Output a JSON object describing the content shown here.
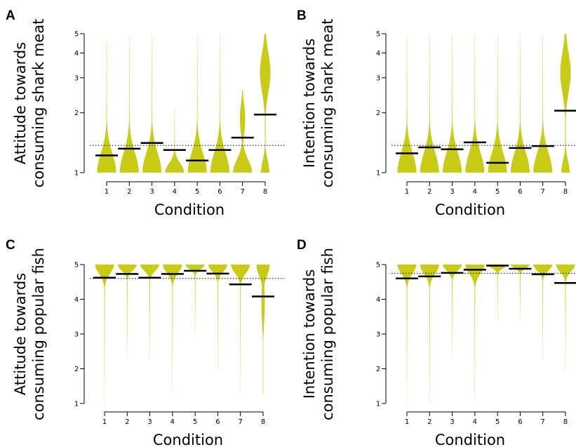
{
  "chart_data": [
    {
      "panel": "A",
      "type": "violin",
      "ylabel": [
        "Attitude towards",
        "consuming shark meat"
      ],
      "xlabel": "Condition",
      "categories": [
        "1",
        "2",
        "3",
        "4",
        "5",
        "6",
        "7",
        "8"
      ],
      "y_scale": "log",
      "ylim": [
        1,
        5
      ],
      "y_ticks": [
        1,
        2,
        3,
        4,
        5
      ],
      "reference_line": 1.37,
      "means": [
        1.22,
        1.32,
        1.41,
        1.3,
        1.15,
        1.3,
        1.5,
        1.96
      ],
      "violin_top": [
        4.9,
        4.95,
        4.95,
        2.1,
        4.9,
        5.0,
        2.6,
        5.0
      ],
      "distribution_type": [
        "low",
        "low",
        "low",
        "low",
        "low",
        "low",
        "wide",
        "high"
      ]
    },
    {
      "panel": "B",
      "type": "violin",
      "ylabel": [
        "Intention towards",
        "consuming shark meat"
      ],
      "xlabel": "Condition",
      "categories": [
        "1",
        "2",
        "3",
        "4",
        "5",
        "6",
        "7",
        "8"
      ],
      "y_scale": "log",
      "ylim": [
        1,
        5
      ],
      "y_ticks": [
        1,
        2,
        3,
        4,
        5
      ],
      "reference_line": 1.37,
      "means": [
        1.25,
        1.34,
        1.31,
        1.42,
        1.12,
        1.33,
        1.36,
        2.05
      ],
      "violin_top": [
        5.0,
        5.0,
        5.0,
        5.0,
        4.9,
        5.0,
        5.0,
        5.0
      ],
      "distribution_type": [
        "low",
        "low",
        "low",
        "low",
        "low",
        "low",
        "low",
        "high"
      ]
    },
    {
      "panel": "C",
      "type": "violin",
      "ylabel": [
        "Attitude towards",
        "consuming popular fish"
      ],
      "xlabel": "Condition",
      "categories": [
        "1",
        "2",
        "3",
        "4",
        "5",
        "6",
        "7",
        "8"
      ],
      "y_scale": "linear",
      "ylim": [
        1,
        5
      ],
      "y_ticks": [
        1,
        2,
        3,
        4,
        5
      ],
      "reference_line": 4.6,
      "means": [
        4.62,
        4.73,
        4.62,
        4.73,
        4.82,
        4.74,
        4.43,
        4.08
      ],
      "violin_bottom": [
        1.0,
        2.35,
        2.25,
        1.25,
        2.95,
        1.9,
        1.3,
        1.25
      ],
      "distribution_type": [
        "high",
        "high",
        "high",
        "high",
        "high",
        "high",
        "high",
        "wide"
      ]
    },
    {
      "panel": "D",
      "type": "violin",
      "ylabel": [
        "Intention towards",
        "consuming popular fish"
      ],
      "xlabel": "Condition",
      "categories": [
        "1",
        "2",
        "3",
        "4",
        "5",
        "6",
        "7",
        "8"
      ],
      "y_scale": "linear",
      "ylim": [
        1,
        5
      ],
      "y_ticks": [
        1,
        2,
        3,
        4,
        5
      ],
      "reference_line": 4.75,
      "means": [
        4.6,
        4.66,
        4.76,
        4.85,
        4.97,
        4.88,
        4.72,
        4.47
      ],
      "violin_bottom": [
        1.0,
        1.0,
        2.3,
        1.0,
        3.35,
        3.35,
        2.3,
        1.9
      ],
      "distribution_type": [
        "high",
        "high",
        "high",
        "high",
        "high",
        "high",
        "high",
        "high"
      ]
    }
  ],
  "colors": {
    "violin": "#c8cc14",
    "mean_bar": "#000000",
    "reference": "#000000"
  }
}
